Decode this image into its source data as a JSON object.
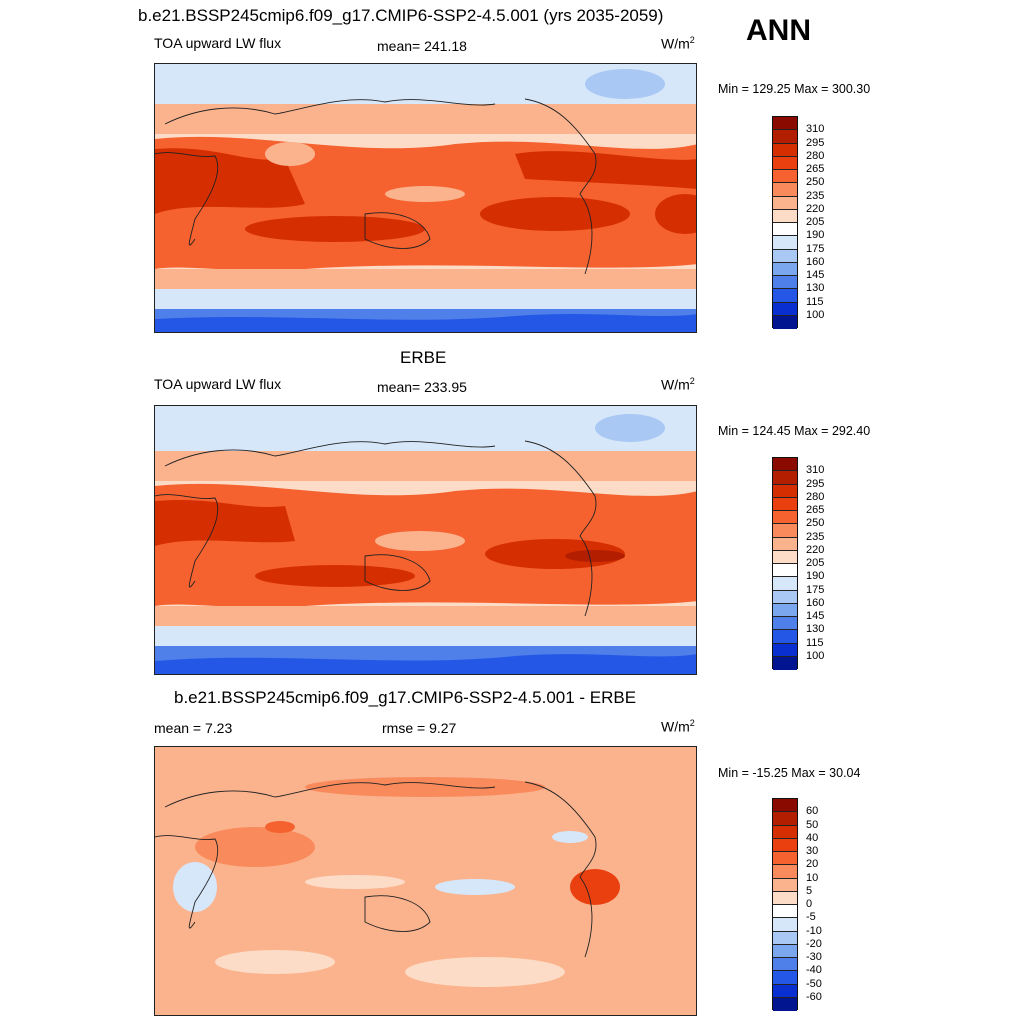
{
  "header": {
    "title": "b.e21.BSSP245cmip6.f09_g17.CMIP6-SSP2-4.5.001 (yrs 2035-2059)",
    "season": "ANN"
  },
  "panels": [
    {
      "id": "model",
      "title": "",
      "left_label": "TOA upward LW flux",
      "center_label": "mean= 241.18",
      "units_base": "W/m",
      "units_exp": "2",
      "minmax": "Min = 129.25 Max = 300.30",
      "colorbar": {
        "ticks": [
          "310",
          "295",
          "280",
          "265",
          "250",
          "235",
          "220",
          "205",
          "190",
          "175",
          "160",
          "145",
          "130",
          "115",
          "100"
        ],
        "colors": [
          "#8b0a00",
          "#b31d00",
          "#d52e00",
          "#ea4010",
          "#f5622f",
          "#f88a5c",
          "#fbb38e",
          "#fcdcc6",
          "#ffffff",
          "#d6e7fa",
          "#aac8f4",
          "#7ba7ef",
          "#4f80ea",
          "#2557e6",
          "#0a2fd0",
          "#00158f"
        ]
      }
    },
    {
      "id": "obs",
      "title": "ERBE",
      "left_label": "TOA upward LW flux",
      "center_label": "mean= 233.95",
      "units_base": "W/m",
      "units_exp": "2",
      "minmax": "Min = 124.45 Max = 292.40",
      "colorbar": {
        "ticks": [
          "310",
          "295",
          "280",
          "265",
          "250",
          "235",
          "220",
          "205",
          "190",
          "175",
          "160",
          "145",
          "130",
          "115",
          "100"
        ],
        "colors": [
          "#8b0a00",
          "#b31d00",
          "#d52e00",
          "#ea4010",
          "#f5622f",
          "#f88a5c",
          "#fbb38e",
          "#fcdcc6",
          "#ffffff",
          "#d6e7fa",
          "#aac8f4",
          "#7ba7ef",
          "#4f80ea",
          "#2557e6",
          "#0a2fd0",
          "#00158f"
        ]
      }
    },
    {
      "id": "diff",
      "title": "b.e21.BSSP245cmip6.f09_g17.CMIP6-SSP2-4.5.001 - ERBE",
      "left_label": "mean =   7.23",
      "center_label": "rmse =   9.27",
      "units_base": "W/m",
      "units_exp": "2",
      "minmax": "Min = -15.25 Max =  30.04",
      "colorbar": {
        "ticks": [
          "60",
          "50",
          "40",
          "30",
          "20",
          "10",
          "5",
          "0",
          "-5",
          "-10",
          "-20",
          "-30",
          "-40",
          "-50",
          "-60"
        ],
        "colors": [
          "#8b0a00",
          "#b31d00",
          "#d52e00",
          "#ea4010",
          "#f5622f",
          "#f88a5c",
          "#fbb38e",
          "#fcdcc6",
          "#ffffff",
          "#d6e7fa",
          "#aac8f4",
          "#7ba7ef",
          "#4f80ea",
          "#2557e6",
          "#0a2fd0",
          "#00158f"
        ]
      }
    }
  ]
}
